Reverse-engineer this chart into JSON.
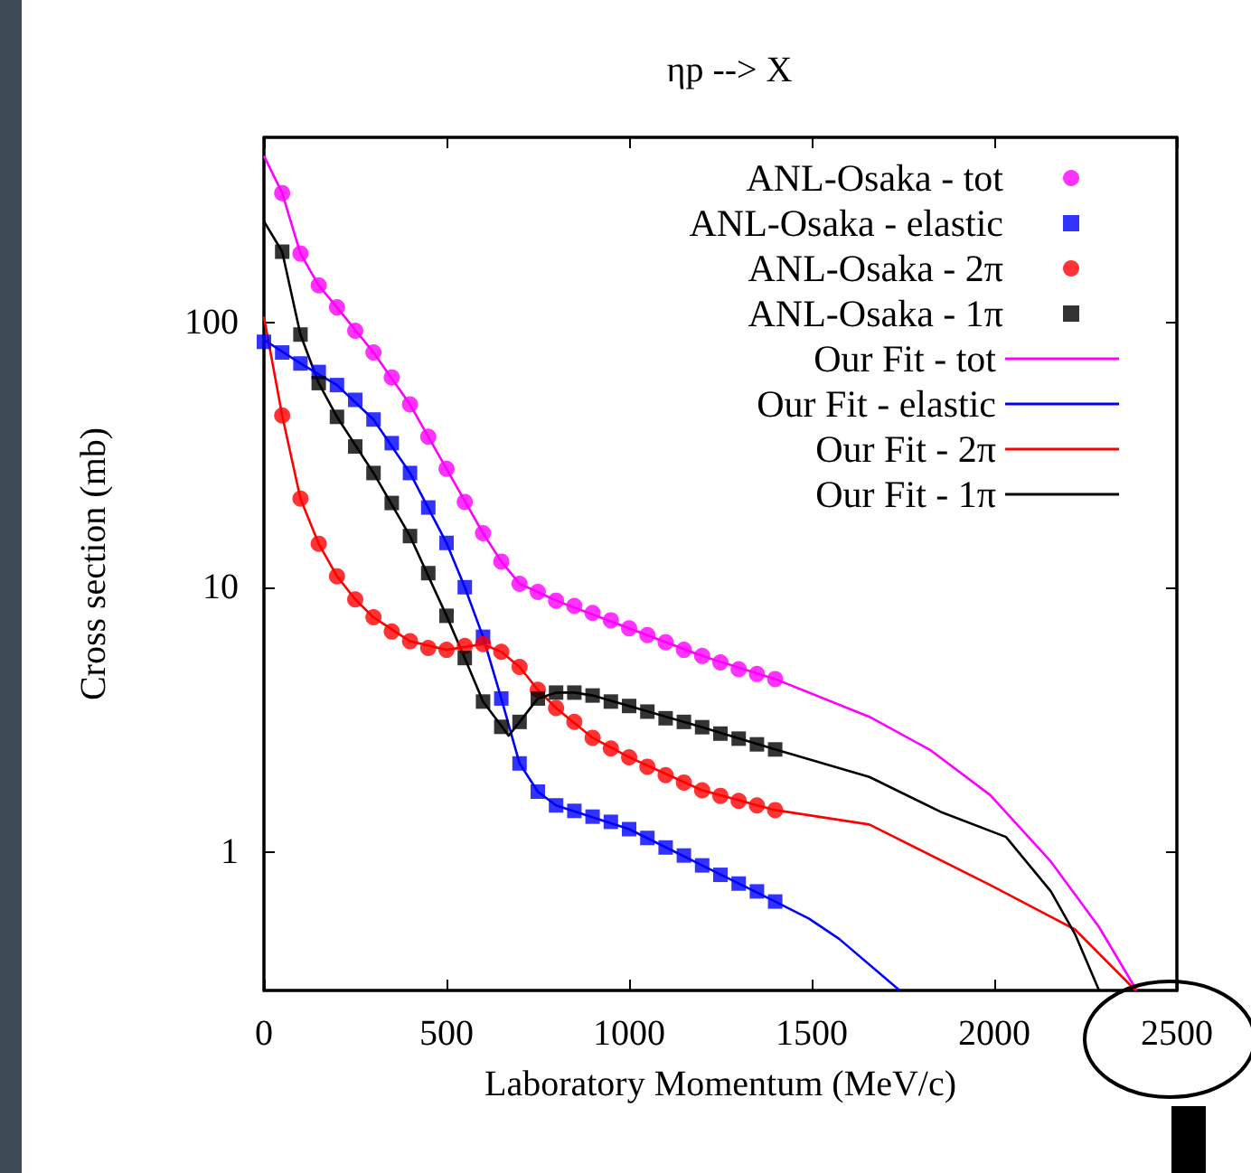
{
  "chart_data": {
    "type": "scatter",
    "title": "ηp --> X",
    "xlabel": "Laboratory Momentum (MeV/c)",
    "ylabel": "Cross section (mb)",
    "log": "y",
    "grid": false,
    "legend": "top right",
    "xlim": [
      0,
      2500
    ],
    "xticks": [
      0,
      500,
      1000,
      1500,
      2000,
      2500
    ],
    "ylim": [
      0.3,
      500
    ],
    "yticks": [
      1,
      10,
      100
    ],
    "series": [
      {
        "name": "ANL-Osaka - tot",
        "marker": "circle",
        "color": "#ff00ff",
        "x": [
          50,
          100,
          150,
          200,
          250,
          300,
          350,
          400,
          450,
          500,
          550,
          600,
          650,
          700,
          750,
          800,
          850,
          900,
          950,
          1000,
          1050,
          1100,
          1150,
          1200,
          1250,
          1300,
          1350,
          1400
        ],
        "values": [
          308,
          182,
          138,
          114,
          93,
          77,
          62,
          49,
          37,
          28,
          21,
          16,
          12.5,
          10.3,
          9.6,
          8.9,
          8.5,
          8.0,
          7.5,
          7.0,
          6.6,
          6.2,
          5.8,
          5.5,
          5.2,
          4.9,
          4.7,
          4.5
        ]
      },
      {
        "name": "ANL-Osaka - elastic",
        "marker": "square",
        "color": "#0000ff",
        "x": [
          0,
          50,
          100,
          150,
          200,
          250,
          300,
          350,
          400,
          450,
          500,
          550,
          600,
          650,
          700,
          750,
          800,
          850,
          900,
          950,
          1000,
          1050,
          1100,
          1150,
          1200,
          1250,
          1300,
          1350,
          1400
        ],
        "values": [
          84.5,
          77,
          70,
          65,
          58,
          51,
          43,
          35,
          27,
          20,
          14.7,
          10,
          6.5,
          3.8,
          2.16,
          1.69,
          1.5,
          1.43,
          1.36,
          1.3,
          1.22,
          1.13,
          1.04,
          0.97,
          0.89,
          0.82,
          0.76,
          0.71,
          0.65
        ]
      },
      {
        "name": "ANL-Osaka - 2π",
        "marker": "circle",
        "color": "#ff0000",
        "x": [
          50,
          100,
          150,
          200,
          250,
          300,
          350,
          400,
          450,
          500,
          550,
          600,
          650,
          700,
          750,
          800,
          850,
          900,
          950,
          1000,
          1050,
          1100,
          1150,
          1200,
          1250,
          1300,
          1350,
          1400
        ],
        "values": [
          44.5,
          21.6,
          14.6,
          11,
          9,
          7.7,
          6.8,
          6.25,
          5.9,
          5.8,
          6,
          6.1,
          5.7,
          5,
          4.1,
          3.5,
          3.1,
          2.7,
          2.46,
          2.28,
          2.1,
          1.95,
          1.83,
          1.71,
          1.63,
          1.56,
          1.5,
          1.44
        ]
      },
      {
        "name": "ANL-Osaka - 1π",
        "marker": "square",
        "color": "#000000",
        "x": [
          50,
          100,
          150,
          200,
          250,
          300,
          350,
          400,
          450,
          500,
          550,
          600,
          650,
          700,
          750,
          800,
          850,
          900,
          950,
          1000,
          1050,
          1100,
          1150,
          1200,
          1250,
          1300,
          1350,
          1400
        ],
        "values": [
          185,
          90,
          59,
          44,
          34,
          27,
          20.8,
          15.6,
          11.3,
          7.8,
          5.4,
          3.7,
          2.97,
          3.1,
          3.8,
          4,
          4,
          3.9,
          3.7,
          3.56,
          3.39,
          3.2,
          3.1,
          2.96,
          2.8,
          2.68,
          2.55,
          2.44
        ]
      },
      {
        "name": "Our Fit - tot",
        "type": "line",
        "marker": "none",
        "color": "#ff00ff",
        "x": [
          0,
          50,
          100,
          150,
          200,
          300,
          400,
          500,
          600,
          650,
          700,
          750,
          800,
          1000,
          1200,
          1400,
          1658,
          1824,
          1989,
          2155,
          2287,
          2390
        ],
        "values": [
          426,
          308,
          182,
          138,
          114,
          77,
          49,
          28,
          16,
          12.5,
          10.3,
          9.6,
          8.9,
          7,
          5.5,
          4.5,
          3.24,
          2.43,
          1.64,
          0.92,
          0.52,
          0.3
        ]
      },
      {
        "name": "Our Fit - elastic",
        "type": "line",
        "marker": "none",
        "color": "#0000ff",
        "x": [
          0,
          100,
          200,
          300,
          400,
          500,
          550,
          600,
          650,
          700,
          750,
          800,
          1000,
          1200,
          1400,
          1493,
          1575,
          1741
        ],
        "values": [
          86,
          70,
          58,
          43,
          27,
          14.7,
          10,
          6.5,
          3.8,
          2.16,
          1.69,
          1.5,
          1.22,
          0.89,
          0.65,
          0.56,
          0.47,
          0.3
        ]
      },
      {
        "name": "Our Fit - 2π",
        "type": "line",
        "marker": "none",
        "color": "#ff0000",
        "x": [
          0,
          50,
          100,
          150,
          200,
          250,
          300,
          400,
          500,
          600,
          650,
          700,
          750,
          800,
          900,
          1000,
          1200,
          1400,
          1658,
          1989,
          2221,
          2387
        ],
        "values": [
          105,
          44.5,
          21.6,
          14.6,
          11,
          9,
          7.7,
          6.25,
          5.8,
          6.1,
          5.7,
          5,
          4.1,
          3.5,
          2.7,
          2.28,
          1.71,
          1.44,
          1.27,
          0.75,
          0.51,
          0.3
        ]
      },
      {
        "name": "Our Fit - 1π",
        "type": "line",
        "marker": "none",
        "color": "#000000",
        "x": [
          0,
          50,
          100,
          150,
          200,
          300,
          400,
          500,
          550,
          600,
          670,
          700,
          750,
          800,
          850,
          900,
          1000,
          1200,
          1400,
          1658,
          1857,
          2032,
          2155,
          2221,
          2287
        ],
        "values": [
          241,
          185,
          90,
          59,
          44,
          27,
          15.6,
          7.8,
          5.4,
          3.7,
          2.75,
          3.1,
          3.8,
          4,
          4,
          3.9,
          3.56,
          2.96,
          2.44,
          1.92,
          1.41,
          1.14,
          0.71,
          0.49,
          0.3
        ]
      }
    ]
  }
}
